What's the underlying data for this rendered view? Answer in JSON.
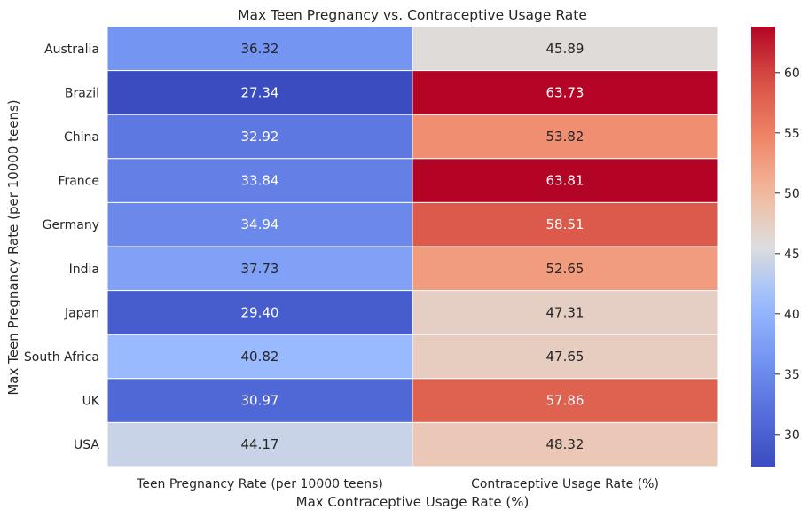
{
  "chart_data": {
    "type": "heatmap",
    "title": "Max Teen Pregnancy vs. Contraceptive Usage Rate",
    "xlabel": "Max Contraceptive Usage Rate (%)",
    "ylabel": "Max Teen Pregnancy Rate (per 10000 teens)",
    "columns": [
      "Teen Pregnancy Rate (per 10000 teens)",
      "Contraceptive Usage Rate (%)"
    ],
    "rows": [
      "Australia",
      "Brazil",
      "China",
      "France",
      "Germany",
      "India",
      "Japan",
      "South Africa",
      "UK",
      "USA"
    ],
    "values": [
      [
        36.32,
        45.89
      ],
      [
        27.34,
        63.73
      ],
      [
        32.92,
        53.82
      ],
      [
        33.84,
        63.81
      ],
      [
        34.94,
        58.51
      ],
      [
        37.73,
        52.65
      ],
      [
        29.4,
        47.31
      ],
      [
        40.82,
        47.65
      ],
      [
        30.97,
        57.86
      ],
      [
        44.17,
        48.32
      ]
    ],
    "value_labels": [
      [
        "36.32",
        "45.89"
      ],
      [
        "27.34",
        "63.73"
      ],
      [
        "32.92",
        "53.82"
      ],
      [
        "33.84",
        "63.81"
      ],
      [
        "34.94",
        "58.51"
      ],
      [
        "37.73",
        "52.65"
      ],
      [
        "29.40",
        "47.31"
      ],
      [
        "40.82",
        "47.65"
      ],
      [
        "30.97",
        "57.86"
      ],
      [
        "44.17",
        "48.32"
      ]
    ],
    "colormap": "coolwarm",
    "colorbar": {
      "range": [
        27.34,
        63.81
      ],
      "ticks": [
        30,
        35,
        40,
        45,
        50,
        55,
        60
      ]
    },
    "grid": false
  },
  "colors": {
    "cell_border": "#ffffff",
    "text_dark": "#262626",
    "text_light": "#ffffff"
  }
}
